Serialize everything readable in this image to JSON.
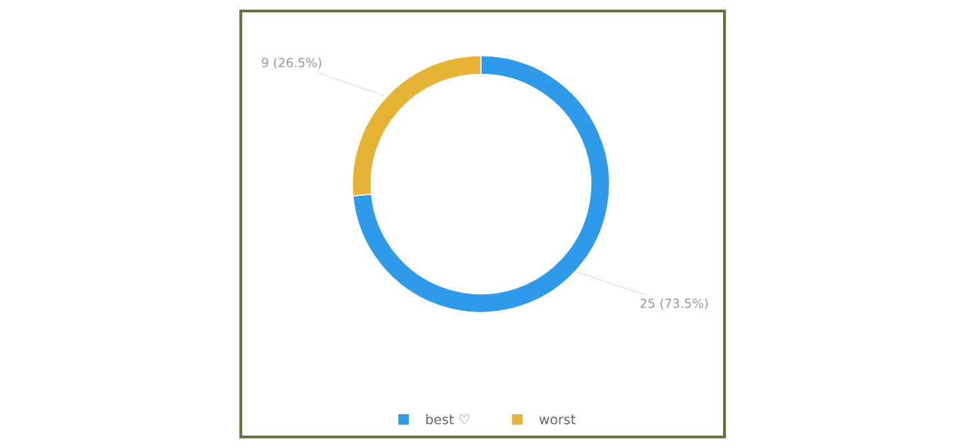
{
  "chart_data": {
    "type": "donut",
    "categories": [
      "best ♡",
      "worst"
    ],
    "values": [
      25,
      9
    ],
    "colors": [
      "#2d9aea",
      "#e6b335"
    ],
    "value_labels": [
      "25 (73.5%)",
      "9 (26.5%)"
    ],
    "legend": "bottom"
  }
}
